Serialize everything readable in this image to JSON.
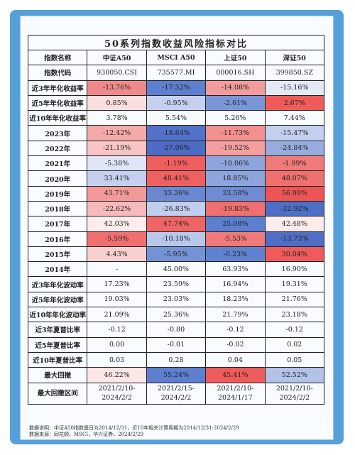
{
  "table": {
    "title": "50系列指数收益风险指标对比",
    "headers": [
      "指数名称",
      "中证A50",
      "MSCI A50",
      "上证50",
      "深证50"
    ],
    "rows": [
      {
        "label": "指数代码",
        "cells": [
          "930050.CSI",
          "735577.MI",
          "000016.SH",
          "399850.SZ"
        ]
      },
      {
        "label": "近3年年化收益率",
        "cells": [
          "-13.76%",
          "-17.52%",
          "-14.08%",
          "-15.16%"
        ]
      },
      {
        "label": "近5年年化收益率",
        "cells": [
          "0.85%",
          "-0.95%",
          "-2.61%",
          "2.67%"
        ]
      },
      {
        "label": "近10年年化收益率",
        "cells": [
          "3.78%",
          "5.54%",
          "5.26%",
          "7.44%"
        ]
      },
      {
        "label": "2023年",
        "cells": [
          "-12.42%",
          "-18.64%",
          "-11.73%",
          "-15.47%"
        ]
      },
      {
        "label": "2022年",
        "cells": [
          "-21.19%",
          "-27.06%",
          "-19.52%",
          "-24.84%"
        ]
      },
      {
        "label": "2021年",
        "cells": [
          "-5.38%",
          "-1.19%",
          "-10.06%",
          "-1.99%"
        ]
      },
      {
        "label": "2020年",
        "cells": [
          "33.41%",
          "48.41%",
          "18.85%",
          "48.07%"
        ]
      },
      {
        "label": "2019年",
        "cells": [
          "43.71%",
          "33.26%",
          "33.58%",
          "56.99%"
        ]
      },
      {
        "label": "2018年",
        "cells": [
          "-22.62%",
          "-26.83%",
          "-19.83%",
          "-32.92%"
        ]
      },
      {
        "label": "2017年",
        "cells": [
          "42.03%",
          "47.74%",
          "25.08%",
          "42.48%"
        ]
      },
      {
        "label": "2016年",
        "cells": [
          "-5.59%",
          "-10.18%",
          "-5.53%",
          "-13.73%"
        ]
      },
      {
        "label": "2015年",
        "cells": [
          "4.43%",
          "-5.95%",
          "-6.23%",
          "30.04%"
        ]
      },
      {
        "label": "2014年",
        "cells": [
          "-",
          "45.00%",
          "63.93%",
          "16.90%"
        ]
      },
      {
        "label": "近3年年化波动率",
        "cells": [
          "17.23%",
          "23.59%",
          "16.94%",
          "19.31%"
        ]
      },
      {
        "label": "近5年年化波动率",
        "cells": [
          "19.03%",
          "23.03%",
          "18.23%",
          "21.76%"
        ]
      },
      {
        "label": "近10年年化波动率",
        "cells": [
          "21.09%",
          "25.36%",
          "21.79%",
          "23.18%"
        ]
      },
      {
        "label": "近3年夏普比率",
        "cells": [
          "-0.12",
          "-0.80",
          "-0.12",
          "-0.12"
        ]
      },
      {
        "label": "近5年夏普比率",
        "cells": [
          "0.00",
          "-0.01",
          "-0.02",
          "0.02"
        ]
      },
      {
        "label": "近10年夏普比率",
        "cells": [
          "0.03",
          "0.28",
          "0.04",
          "0.05"
        ]
      },
      {
        "label": "最大回撤",
        "cells": [
          "46.22%",
          "55.24%",
          "45.41%",
          "52.52%"
        ]
      },
      {
        "label": "最大回撤区间",
        "cells": [
          "2021/2/10-\n2024/2/2",
          "2021/2/15-\n2024/2/2",
          "2021/2/10-\n2024/1/17",
          "2021/2/10-\n2024/2/2"
        ]
      }
    ],
    "cell_colors": [
      [
        "",
        "",
        "",
        ""
      ],
      [
        "#f08a8a",
        "#5d7fcf",
        "#f49c9c",
        "#e3e9f6"
      ],
      [
        "#fbdede",
        "#c4d0ee",
        "#7996d8",
        "#ef5a5a"
      ],
      [
        "",
        "",
        "",
        ""
      ],
      [
        "#f4aaaa",
        "#5372c9",
        "#f28f8f",
        "#c3cfee"
      ],
      [
        "#f8c4c4",
        "#4e6cc5",
        "#f49f9f",
        "#98ace0"
      ],
      [
        "#dfe6f6",
        "#ef5f5f",
        "#8ea4dc",
        "#f07a7a"
      ],
      [
        "#c4d0ee",
        "#ef6060",
        "#8ea4dc",
        "#f07070"
      ],
      [
        "#f29a9a",
        "#6a88d1",
        "#6f8cd3",
        "#ef5454"
      ],
      [
        "#f6baba",
        "#c2ceed",
        "#f07070",
        "#4f6ec6"
      ],
      [
        "#fcecec",
        "#ef6464",
        "#5d7fcf",
        "#fcecec"
      ],
      [
        "#f07070",
        "#b8c7ea",
        "#f07a7a",
        "#4f6ec6"
      ],
      [
        "#f9d0d0",
        "#7492d6",
        "#5f82d0",
        "#ef5a5a"
      ],
      [
        "",
        "",
        "",
        ""
      ],
      [
        "",
        "",
        "",
        ""
      ],
      [
        "",
        "",
        "",
        ""
      ],
      [
        "",
        "",
        "",
        ""
      ],
      [
        "",
        "",
        "",
        ""
      ],
      [
        "",
        "",
        "",
        ""
      ],
      [
        "",
        "",
        "",
        ""
      ],
      [
        "#fce6e6",
        "#5d7fcf",
        "#ef5a5a",
        "#b2c2e8"
      ],
      [
        "",
        "",
        "",
        ""
      ]
    ]
  },
  "notes": [
    "数据说明：中证A50指数基日为2014/12/31，近10年相关计算周期为2014/12/31-2024/2/29",
    "数据来源：同花顺，MSCI，华兴证券，2024/2/29"
  ]
}
